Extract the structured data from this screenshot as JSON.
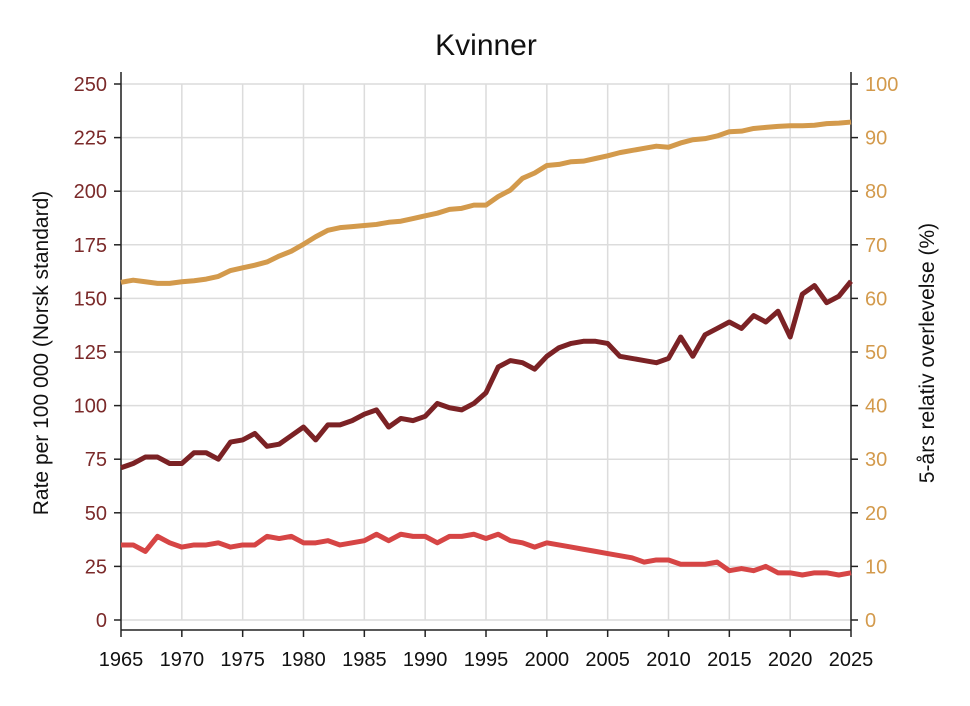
{
  "chart_data": {
    "type": "line",
    "title": "Kvinner",
    "ylabel_left": "Rate per 100 000 (Norsk standard)",
    "ylabel_right": "5-års relativ overlevelse (%)",
    "xlim": [
      1965,
      2025
    ],
    "ylim_left": [
      0,
      250
    ],
    "ylim_right": [
      0,
      100
    ],
    "x_ticks": [
      1965,
      1970,
      1975,
      1980,
      1985,
      1990,
      1995,
      2000,
      2005,
      2010,
      2015,
      2020,
      2025
    ],
    "y_left_ticks": [
      0,
      25,
      50,
      75,
      100,
      125,
      150,
      175,
      200,
      225,
      250
    ],
    "y_right_ticks": [
      0,
      10,
      20,
      30,
      40,
      50,
      60,
      70,
      80,
      90,
      100
    ],
    "grid": true,
    "x": [
      1965,
      1966,
      1967,
      1968,
      1969,
      1970,
      1971,
      1972,
      1973,
      1974,
      1975,
      1976,
      1977,
      1978,
      1979,
      1980,
      1981,
      1982,
      1983,
      1984,
      1985,
      1986,
      1987,
      1988,
      1989,
      1990,
      1991,
      1992,
      1993,
      1994,
      1995,
      1996,
      1997,
      1998,
      1999,
      2000,
      2001,
      2002,
      2003,
      2004,
      2005,
      2006,
      2007,
      2008,
      2009,
      2010,
      2011,
      2012,
      2013,
      2014,
      2015,
      2016,
      2017,
      2018,
      2019,
      2020,
      2021,
      2022,
      2023,
      2024,
      2025
    ],
    "series": [
      {
        "axis": "right",
        "color": "#d39a4c",
        "values": [
          63.0,
          63.4,
          63.1,
          62.8,
          62.8,
          63.1,
          63.3,
          63.6,
          64.1,
          65.2,
          65.7,
          66.2,
          66.8,
          67.9,
          68.8,
          70.1,
          71.5,
          72.7,
          73.2,
          73.4,
          73.6,
          73.8,
          74.2,
          74.4,
          74.9,
          75.4,
          75.9,
          76.6,
          76.8,
          77.4,
          77.4,
          79.0,
          80.2,
          82.4,
          83.4,
          84.8,
          85.0,
          85.5,
          85.6,
          86.1,
          86.6,
          87.2,
          87.6,
          88.0,
          88.4,
          88.2,
          89.0,
          89.6,
          89.8,
          90.3,
          91.1,
          91.2,
          91.7,
          91.9,
          92.1,
          92.2,
          92.2,
          92.3,
          92.6,
          92.7,
          92.9
        ]
      },
      {
        "axis": "left",
        "color": "#7b2225",
        "values": [
          71,
          73,
          76,
          76,
          73,
          73,
          78,
          78,
          75,
          83,
          84,
          87,
          81,
          82,
          86,
          90,
          84,
          91,
          91,
          93,
          96,
          98,
          90,
          94,
          93,
          95,
          101,
          99,
          98,
          101,
          106,
          118,
          121,
          120,
          117,
          123,
          127,
          129,
          130,
          130,
          129,
          123,
          122,
          121,
          120,
          122,
          132,
          123,
          133,
          136,
          139,
          136,
          142,
          139,
          144,
          132,
          152,
          156,
          148,
          151,
          158
        ]
      },
      {
        "axis": "left",
        "color": "#d64545",
        "values": [
          35,
          35,
          32,
          39,
          36,
          34,
          35,
          35,
          36,
          34,
          35,
          35,
          39,
          38,
          39,
          36,
          36,
          37,
          35,
          36,
          37,
          40,
          37,
          40,
          39,
          39,
          36,
          39,
          39,
          40,
          38,
          40,
          37,
          36,
          34,
          36,
          35,
          34,
          33,
          32,
          31,
          30,
          29,
          27,
          28,
          28,
          26,
          26,
          26,
          27,
          23,
          24,
          23,
          25,
          22,
          22,
          21,
          22,
          22,
          21,
          22
        ]
      }
    ]
  }
}
